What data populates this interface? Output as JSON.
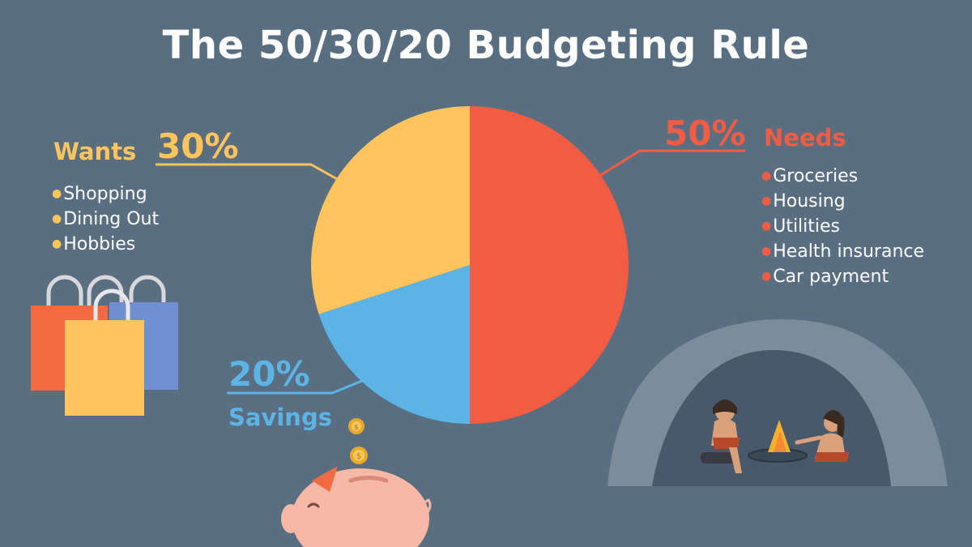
{
  "title": "The 50/30/20 Budgeting Rule",
  "colors": {
    "background": "#5a6e82",
    "needs": "#f25c42",
    "wants": "#ffc55c",
    "savings": "#5cb3e6"
  },
  "needs": {
    "percent": "50%",
    "label": "Needs",
    "items": [
      "Groceries",
      "Housing",
      "Utilities",
      "Health insurance",
      "Car payment"
    ]
  },
  "wants": {
    "percent": "30%",
    "label": "Wants",
    "items": [
      "Shopping",
      "Dining Out",
      "Hobbies"
    ]
  },
  "savings": {
    "percent": "20%",
    "label": "Savings"
  },
  "chart_data": {
    "type": "pie",
    "categories": [
      "Needs",
      "Savings",
      "Wants"
    ],
    "values": [
      50,
      20,
      30
    ],
    "colors": [
      "#f25c42",
      "#5cb3e6",
      "#ffc55c"
    ],
    "start": "12 o'clock, clockwise"
  },
  "icons": [
    "shopping-bags-icon",
    "piggy-bank-icon",
    "coin-icon",
    "cave-scene-icon"
  ]
}
